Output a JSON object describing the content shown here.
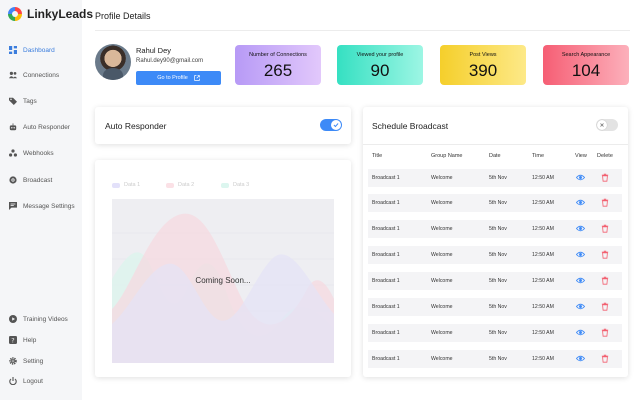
{
  "brand": {
    "name": "LinkyLeads"
  },
  "header": {
    "title": "Profile Details"
  },
  "sidebar": {
    "top_items": [
      {
        "label": "Dashboard",
        "icon": "dashboard-icon",
        "active": true
      },
      {
        "label": "Connections",
        "icon": "people-icon"
      },
      {
        "label": "Tags",
        "icon": "tag-icon"
      },
      {
        "label": "Auto Responder",
        "icon": "robot-icon"
      },
      {
        "label": "Webhooks",
        "icon": "webhook-icon"
      },
      {
        "label": "Broadcast",
        "icon": "broadcast-icon"
      },
      {
        "label": "Message Settings",
        "icon": "message-icon"
      }
    ],
    "bottom_items": [
      {
        "label": "Training Videos",
        "icon": "play-icon"
      },
      {
        "label": "Help",
        "icon": "help-icon"
      },
      {
        "label": "Setting",
        "icon": "gear-icon"
      },
      {
        "label": "Logout",
        "icon": "power-icon"
      }
    ]
  },
  "profile": {
    "name": "Rahul Dey",
    "email": "Rahul.dey90@gmail.com",
    "button_label": "Go to Profile"
  },
  "stats": [
    {
      "label": "Number of Connections",
      "value": "265"
    },
    {
      "label": "Viewed your profile",
      "value": "90"
    },
    {
      "label": "Post Views",
      "value": "390"
    },
    {
      "label": "Search Appearance",
      "value": "104"
    }
  ],
  "auto_responder": {
    "title": "Auto Responder",
    "enabled": true,
    "accent": "#3d8af7"
  },
  "chart_card": {
    "legend": [
      "Data 1",
      "Data 2",
      "Data 3"
    ],
    "legend_colors": [
      "#c9c6f5",
      "#f7c7cf",
      "#bfeee0"
    ],
    "message": "Coming Soon..."
  },
  "schedule": {
    "title": "Schedule Broadcast",
    "enabled": false,
    "columns": [
      "Title",
      "Group Name",
      "Date",
      "Time",
      "View",
      "Delete"
    ],
    "rows": [
      {
        "title": "Broadcast 1",
        "group": "Welcome",
        "date": "5th Nov",
        "time": "12:50 AM"
      },
      {
        "title": "Broadcast 1",
        "group": "Welcome",
        "date": "5th Nov",
        "time": "12:50 AM"
      },
      {
        "title": "Broadcast 1",
        "group": "Welcome",
        "date": "5th Nov",
        "time": "12:50 AM"
      },
      {
        "title": "Broadcast 1",
        "group": "Welcome",
        "date": "5th Nov",
        "time": "12:50 AM"
      },
      {
        "title": "Broadcast 1",
        "group": "Welcome",
        "date": "5th Nov",
        "time": "12:50 AM"
      },
      {
        "title": "Broadcast 1",
        "group": "Welcome",
        "date": "5th Nov",
        "time": "12:50 AM"
      },
      {
        "title": "Broadcast 1",
        "group": "Welcome",
        "date": "5th Nov",
        "time": "12:50 AM"
      },
      {
        "title": "Broadcast 1",
        "group": "Welcome",
        "date": "5th Nov",
        "time": "12:50 AM"
      }
    ],
    "view_color": "#3d8af7",
    "delete_color": "#f25f6f"
  }
}
